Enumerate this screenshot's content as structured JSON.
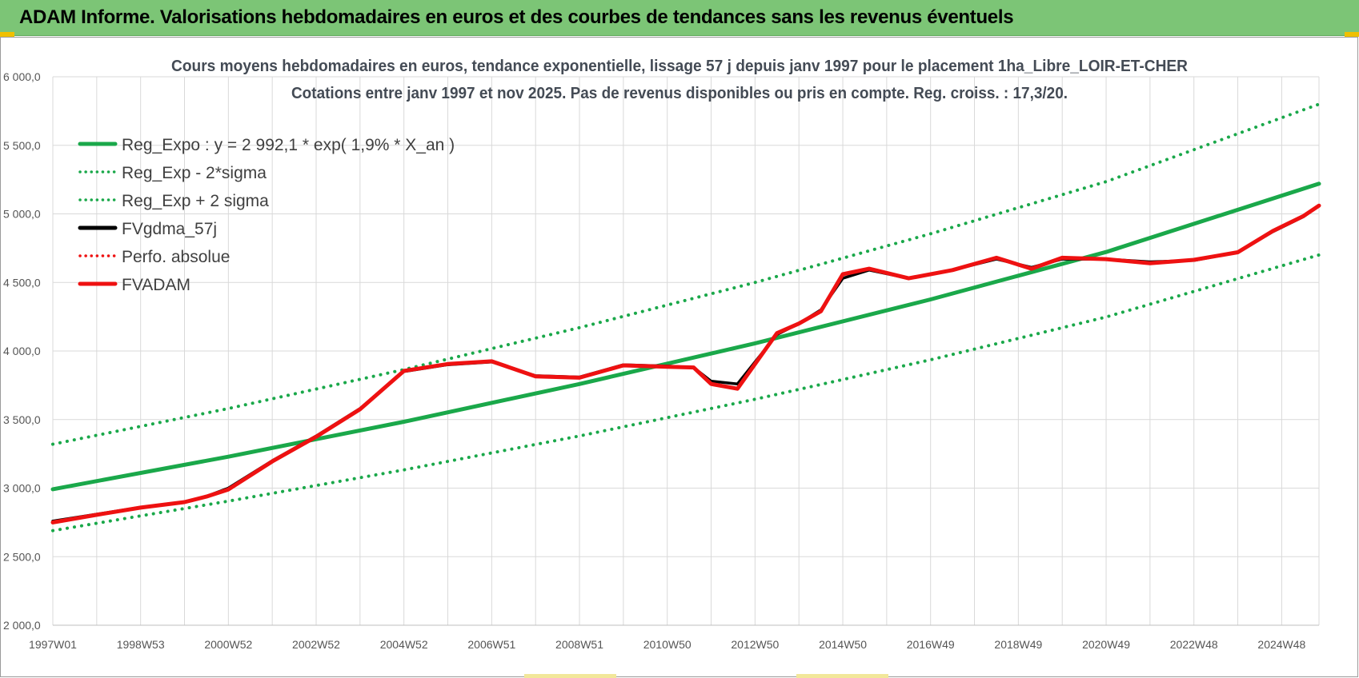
{
  "banner": {
    "title": "ADAM Informe. Valorisations hebdomadaires en euros et des courbes de tendances sans les revenus éventuels"
  },
  "colors": {
    "banner_bg": "#7cc576",
    "trend_green": "#1aa84a",
    "fv_red": "#ee1111",
    "fv_black": "#000000"
  },
  "chart_data": {
    "type": "line",
    "title": "Cours moyens hebdomadaires en euros, tendance exponentielle, lissage 57 j depuis janv 1997 pour le placement 1ha_Libre_LOIR-ET-CHER",
    "subtitle": "Cotations entre janv 1997 et nov 2025. Pas de revenus disponibles ou pris en compte. Reg. croiss. : 17,3/20.",
    "xlabel": "",
    "ylabel": "",
    "ylim": [
      2000,
      6000
    ],
    "xlim_years": [
      1997.0,
      2025.85
    ],
    "y_ticks": [
      "2 000,0",
      "2 500,0",
      "3 000,0",
      "3 500,0",
      "4 000,0",
      "4 500,0",
      "5 000,0",
      "5 500,0",
      "6 000,0"
    ],
    "y_tick_values": [
      2000,
      2500,
      3000,
      3500,
      4000,
      4500,
      5000,
      5500,
      6000
    ],
    "x_ticks": [
      "1997W01",
      "1998W53",
      "2000W52",
      "2002W52",
      "2004W52",
      "2006W51",
      "2008W51",
      "2010W50",
      "2012W50",
      "2014W50",
      "2016W49",
      "2018W49",
      "2020W49",
      "2022W48",
      "2024W48"
    ],
    "x_tick_years": [
      1997.0,
      1999.0,
      2001.0,
      2003.0,
      2005.0,
      2007.0,
      2009.0,
      2011.0,
      2013.0,
      2015.0,
      2017.0,
      2019.0,
      2021.0,
      2023.0,
      2025.0
    ],
    "grid": true,
    "legend_position": "top-left",
    "series": [
      {
        "name": "Reg_Expo : y = 2 992,1 * exp( 1,9% *  X_an )",
        "style": "solid",
        "color": "#1aa84a",
        "x": [
          1997.0,
          2001.0,
          2005.0,
          2009.0,
          2013.0,
          2017.0,
          2021.0,
          2025.85
        ],
        "values": [
          2992,
          3229,
          3484,
          3759,
          4056,
          4376,
          4722,
          5220
        ]
      },
      {
        "name": "Reg_Exp - 2*sigma",
        "style": "dotted",
        "color": "#1aa84a",
        "x": [
          1997.0,
          2001.0,
          2005.0,
          2009.0,
          2013.0,
          2017.0,
          2021.0,
          2025.85
        ],
        "values": [
          2690,
          2905,
          3133,
          3380,
          3648,
          3936,
          4248,
          4700
        ]
      },
      {
        "name": "Reg_Exp + 2 sigma",
        "style": "dotted",
        "color": "#1aa84a",
        "x": [
          1997.0,
          2001.0,
          2005.0,
          2009.0,
          2013.0,
          2017.0,
          2021.0,
          2025.85
        ],
        "values": [
          3320,
          3580,
          3865,
          4170,
          4500,
          4855,
          5235,
          5800
        ]
      },
      {
        "name": "FVgdma_57j",
        "style": "solid",
        "color": "#000000",
        "x": [
          1997.0,
          1998.0,
          1999.0,
          2000.0,
          2000.5,
          2001.0,
          2002.0,
          2003.0,
          2004.0,
          2005.0,
          2006.0,
          2007.0,
          2008.0,
          2009.0,
          2010.0,
          2011.0,
          2011.6,
          2012.0,
          2012.6,
          2013.5,
          2014.0,
          2014.5,
          2015.0,
          2015.6,
          2016.5,
          2017.5,
          2018.5,
          2019.3,
          2020.0,
          2021.0,
          2022.0,
          2023.0,
          2024.0,
          2024.8,
          2025.5,
          2025.85
        ],
        "values": [
          2760,
          2810,
          2860,
          2900,
          2940,
          3000,
          3200,
          3380,
          3580,
          3850,
          3900,
          3920,
          3820,
          3810,
          3900,
          3890,
          3880,
          3780,
          3760,
          4120,
          4200,
          4300,
          4530,
          4590,
          4530,
          4590,
          4670,
          4610,
          4670,
          4670,
          4650,
          4660,
          4720,
          4870,
          4980,
          5060
        ]
      },
      {
        "name": "Perfo. absolue",
        "style": "dotted",
        "color": "#ee1111",
        "x": [],
        "values": []
      },
      {
        "name": "FVADAM",
        "style": "solid",
        "color": "#ee1111",
        "x": [
          1997.0,
          1998.0,
          1999.0,
          2000.0,
          2000.5,
          2001.0,
          2002.0,
          2003.0,
          2004.0,
          2005.0,
          2006.0,
          2007.0,
          2008.0,
          2009.0,
          2010.0,
          2011.0,
          2011.6,
          2012.0,
          2012.6,
          2013.5,
          2014.0,
          2014.5,
          2015.0,
          2015.6,
          2016.5,
          2017.5,
          2018.5,
          2019.3,
          2020.0,
          2021.0,
          2022.0,
          2023.0,
          2024.0,
          2024.8,
          2025.5,
          2025.85
        ],
        "values": [
          2750,
          2805,
          2858,
          2898,
          2938,
          2990,
          3195,
          3375,
          3575,
          3855,
          3905,
          3925,
          3815,
          3805,
          3895,
          3885,
          3880,
          3760,
          3725,
          4130,
          4200,
          4290,
          4560,
          4600,
          4530,
          4590,
          4680,
          4600,
          4680,
          4670,
          4640,
          4665,
          4720,
          4875,
          4985,
          5060
        ]
      }
    ]
  }
}
